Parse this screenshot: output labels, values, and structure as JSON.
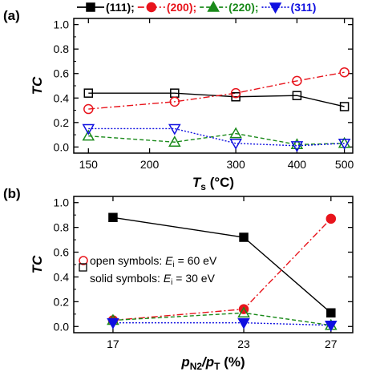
{
  "legend": {
    "items": [
      {
        "label": "(111);",
        "color": "#000000"
      },
      {
        "label": "(200);",
        "color": "#e8141c"
      },
      {
        "label": "(220);",
        "color": "#1a8a1a"
      },
      {
        "label": "(311)",
        "color": "#1010e0"
      }
    ]
  },
  "chart_data": [
    {
      "type": "line",
      "panel_label": "(a)",
      "ylabel": "TC",
      "xlabel_main": "T",
      "xlabel_sub": "s",
      "xlabel_unit": " (°C)",
      "x_scale": "log",
      "xlim": [
        140,
        520
      ],
      "ylim": [
        -0.05,
        1.05
      ],
      "x_ticks": [
        150,
        200,
        300,
        400,
        500
      ],
      "y_ticks": [
        "0.0",
        "0.2",
        "0.4",
        "0.6",
        "0.8",
        "1.0"
      ],
      "x": [
        150,
        225,
        300,
        400,
        500
      ],
      "series": [
        {
          "name": "(111)",
          "color": "#000000",
          "dash": "",
          "marker": "square",
          "filled": false,
          "values": [
            0.44,
            0.44,
            0.41,
            0.42,
            0.33
          ]
        },
        {
          "name": "(200)",
          "color": "#e8141c",
          "dash": "8,3,2,3",
          "marker": "circle",
          "filled": false,
          "values": [
            0.31,
            0.37,
            0.44,
            0.54,
            0.61
          ]
        },
        {
          "name": "(220)",
          "color": "#1a8a1a",
          "dash": "5,3",
          "marker": "triangle-up",
          "filled": false,
          "values": [
            0.09,
            0.04,
            0.11,
            0.02,
            0.03
          ]
        },
        {
          "name": "(311)",
          "color": "#1010e0",
          "dash": "2,2",
          "marker": "triangle-down",
          "filled": false,
          "values": [
            0.15,
            0.15,
            0.03,
            0.01,
            0.03
          ]
        }
      ]
    },
    {
      "type": "line",
      "panel_label": "(b)",
      "ylabel": "TC",
      "xlabel_main": "p",
      "xlabel_sub": "N2",
      "xlabel_mid": "/p",
      "xlabel_sub2": "T",
      "xlabel_unit": " (%)",
      "xlim": [
        15.2,
        28
      ],
      "ylim": [
        -0.05,
        1.05
      ],
      "x_ticks": [
        17,
        23,
        27
      ],
      "y_ticks": [
        "0.0",
        "0.2",
        "0.4",
        "0.6",
        "0.8",
        "1.0"
      ],
      "x": [
        17,
        23,
        27
      ],
      "annotations": {
        "open_text": "open symbols: ",
        "solid_text": "solid symbols: ",
        "open_var": "E",
        "solid_var": "E",
        "var_sub": "i",
        "open_value": " = 60 eV",
        "solid_value": " = 30 eV"
      },
      "series": [
        {
          "name": "(111)",
          "color": "#000000",
          "dash": "",
          "marker": "square",
          "filled": true,
          "values": [
            0.88,
            0.72,
            0.11
          ]
        },
        {
          "name": "(200)",
          "color": "#e8141c",
          "dash": "8,3,2,3",
          "marker": "circle",
          "filled": true,
          "values": [
            0.05,
            0.14,
            0.87
          ]
        },
        {
          "name": "(220)",
          "color": "#1a8a1a",
          "dash": "5,3",
          "marker": "triangle-up",
          "filled": false,
          "values": [
            0.05,
            0.11,
            0.01
          ]
        },
        {
          "name": "(311)",
          "color": "#1010e0",
          "dash": "2,2",
          "marker": "triangle-down",
          "filled": true,
          "values": [
            0.03,
            0.03,
            0.01
          ]
        }
      ]
    }
  ]
}
